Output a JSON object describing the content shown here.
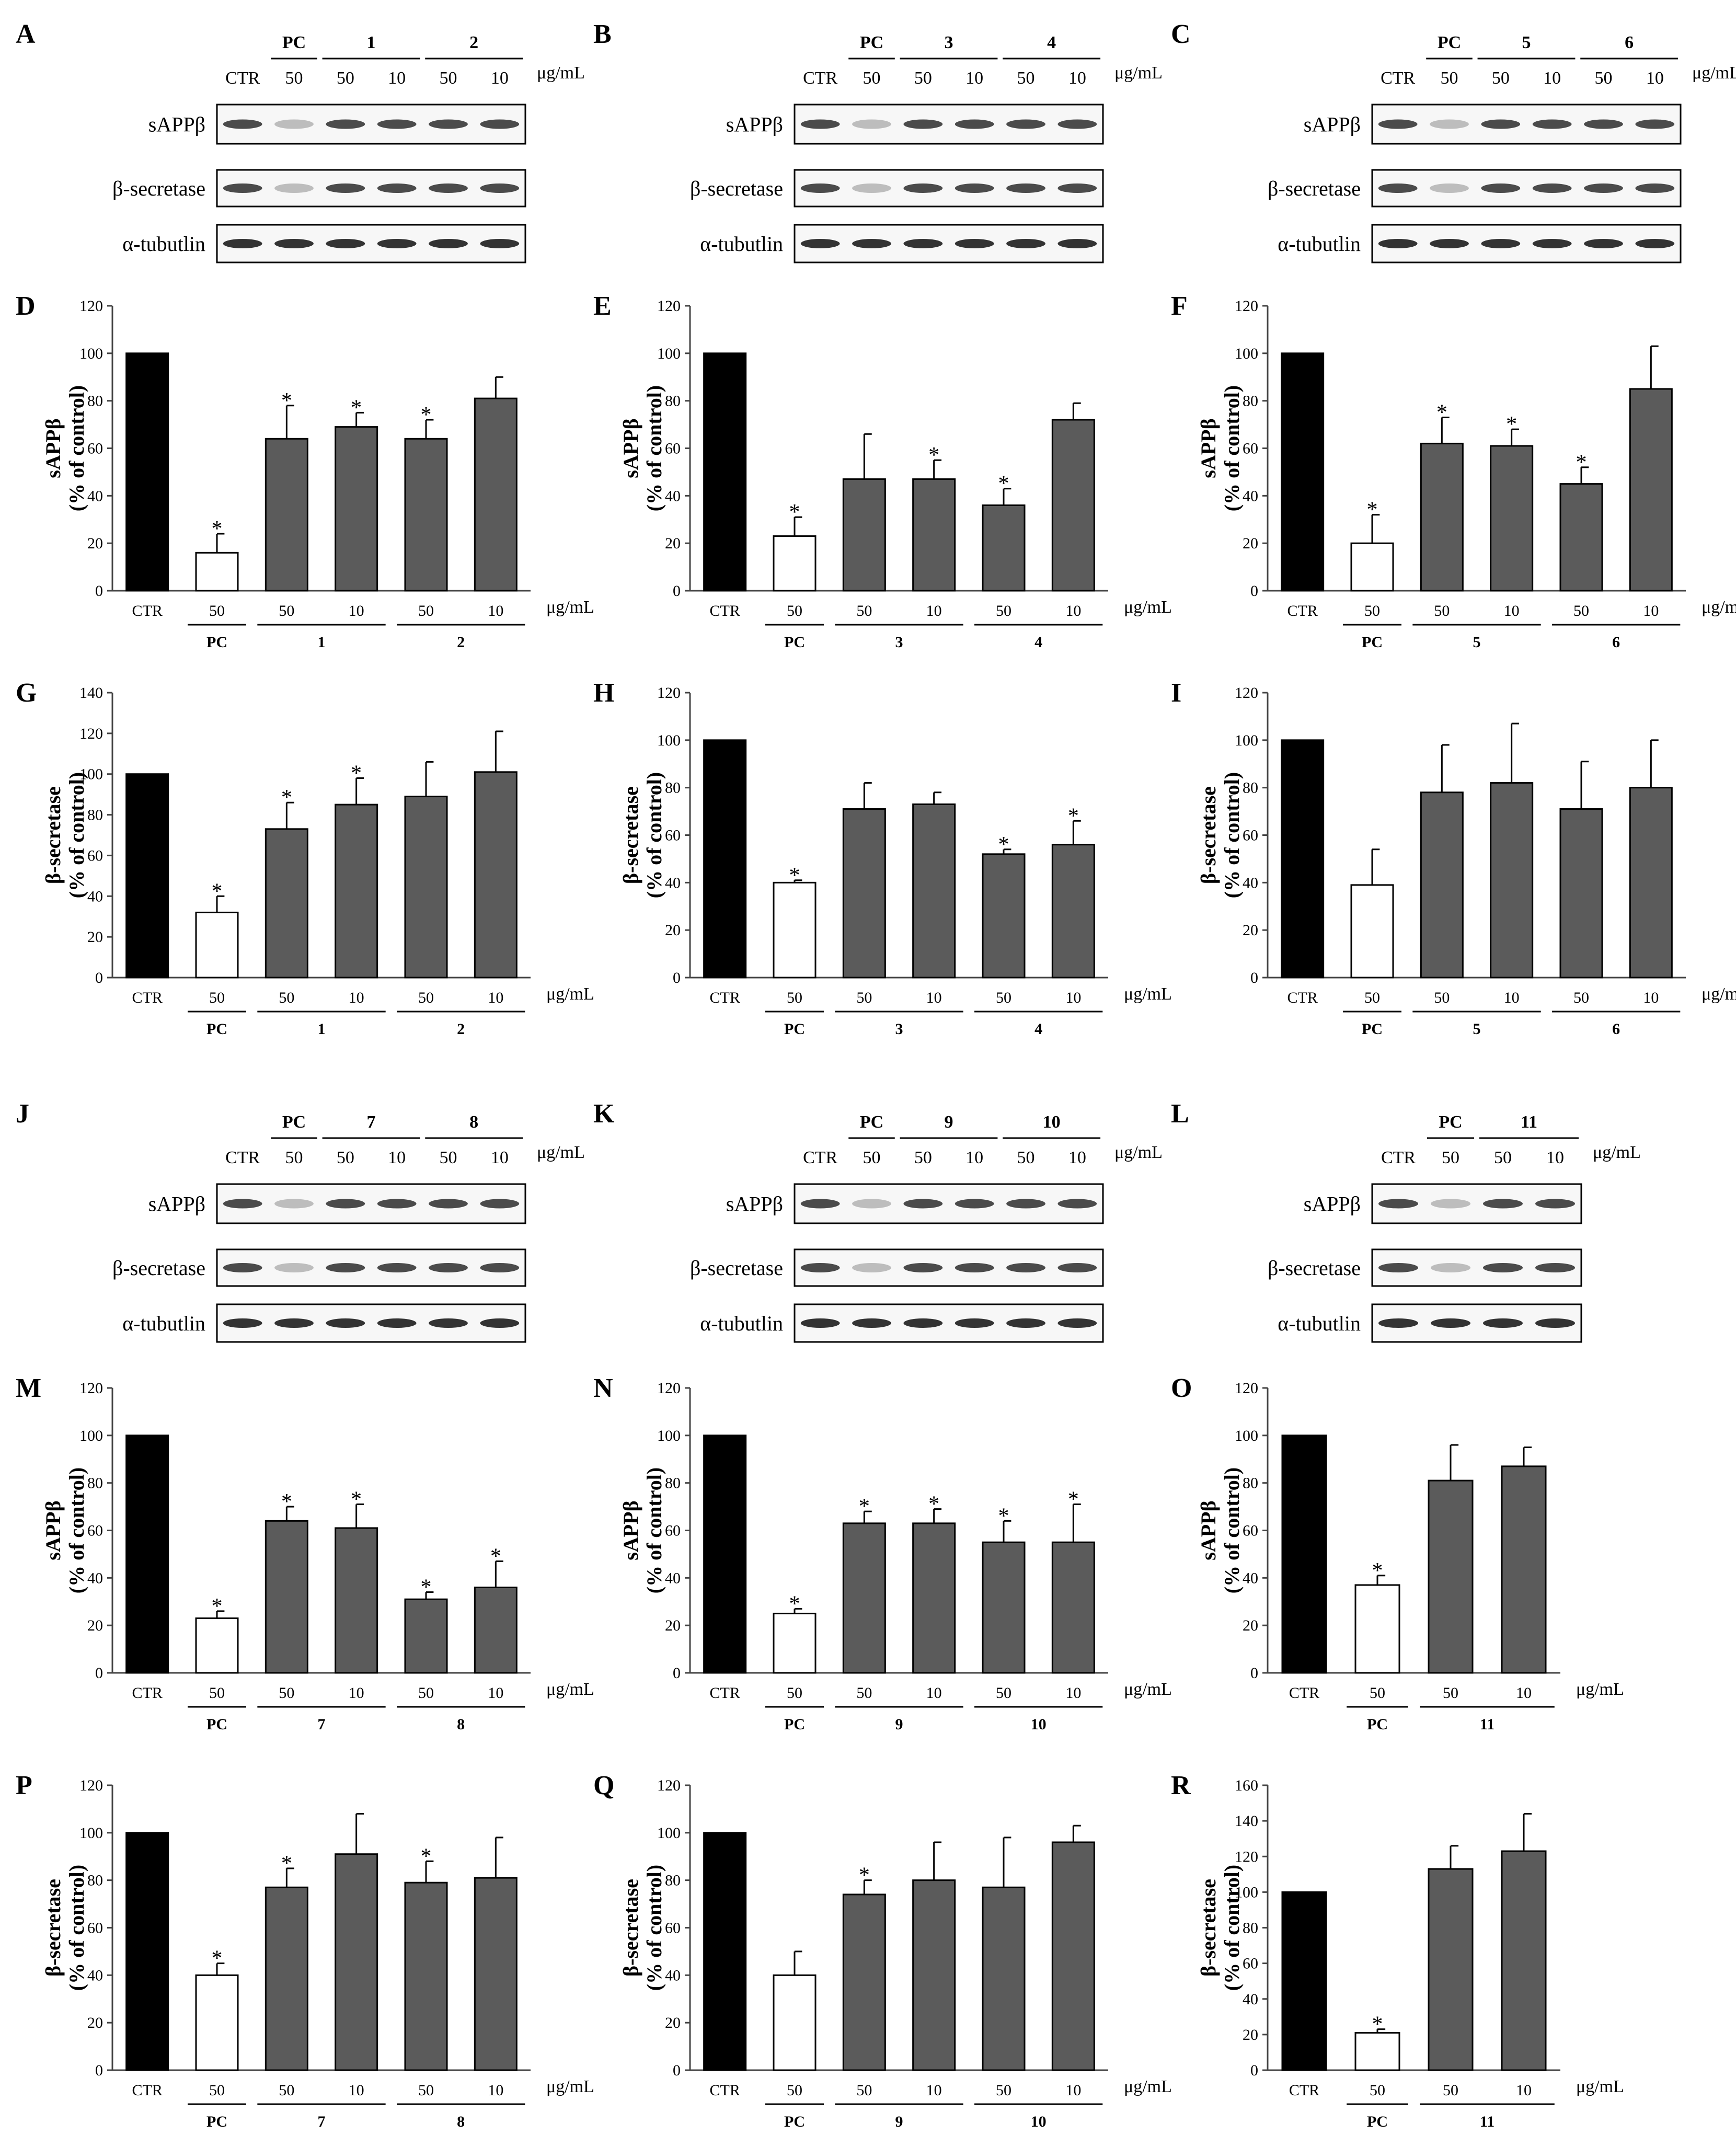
{
  "unit_label": "μg/mL",
  "blots": [
    {
      "letter": "A",
      "header": [
        "CTR",
        "50",
        "50",
        "10",
        "50",
        "10"
      ],
      "groups": [
        "PC",
        "1",
        "2"
      ],
      "rows": [
        "sAPPβ",
        "β-secretase",
        "α-tubutlin"
      ]
    },
    {
      "letter": "B",
      "header": [
        "CTR",
        "50",
        "50",
        "10",
        "50",
        "10"
      ],
      "groups": [
        "PC",
        "3",
        "4"
      ],
      "rows": [
        "sAPPβ",
        "β-secretase",
        "α-tubutlin"
      ]
    },
    {
      "letter": "C",
      "header": [
        "CTR",
        "50",
        "50",
        "10",
        "50",
        "10"
      ],
      "groups": [
        "PC",
        "5",
        "6"
      ],
      "rows": [
        "sAPPβ",
        "β-secretase",
        "α-tubutlin"
      ]
    },
    {
      "letter": "J",
      "header": [
        "CTR",
        "50",
        "50",
        "10",
        "50",
        "10"
      ],
      "groups": [
        "PC",
        "7",
        "8"
      ],
      "rows": [
        "sAPPβ",
        "β-secretase",
        "α-tubutlin"
      ]
    },
    {
      "letter": "K",
      "header": [
        "CTR",
        "50",
        "50",
        "10",
        "50",
        "10"
      ],
      "groups": [
        "PC",
        "9",
        "10"
      ],
      "rows": [
        "sAPPβ",
        "β-secretase",
        "α-tubutlin"
      ]
    },
    {
      "letter": "L",
      "header": [
        "CTR",
        "50",
        "50",
        "10"
      ],
      "groups": [
        "PC",
        "11"
      ],
      "rows": [
        "sAPPβ",
        "β-secretase",
        "α-tubutlin"
      ]
    }
  ],
  "chart_data": [
    {
      "letter": "D",
      "type": "bar",
      "ylabel": "sAPPβ",
      "ylabel2": "(% of control)",
      "ylim": [
        0,
        120
      ],
      "yticks": [
        "0",
        "20",
        "40",
        "60",
        "80",
        "100",
        "120"
      ],
      "categories": [
        "CTR",
        "50",
        "50",
        "10",
        "50",
        "10"
      ],
      "groups": [
        "PC",
        "1",
        "2"
      ],
      "values": [
        100,
        16,
        64,
        69,
        64,
        81
      ],
      "errors": [
        0,
        8,
        14,
        6,
        8,
        9
      ],
      "significant": [
        false,
        true,
        true,
        true,
        true,
        false
      ]
    },
    {
      "letter": "E",
      "type": "bar",
      "ylabel": "sAPPβ",
      "ylabel2": "(% of control)",
      "ylim": [
        0,
        120
      ],
      "yticks": [
        "0",
        "20",
        "40",
        "60",
        "80",
        "100",
        "120"
      ],
      "categories": [
        "CTR",
        "50",
        "50",
        "10",
        "50",
        "10"
      ],
      "groups": [
        "PC",
        "3",
        "4"
      ],
      "values": [
        100,
        23,
        47,
        47,
        36,
        72
      ],
      "errors": [
        0,
        8,
        19,
        8,
        7,
        7
      ],
      "significant": [
        false,
        true,
        false,
        true,
        true,
        false
      ]
    },
    {
      "letter": "F",
      "type": "bar",
      "ylabel": "sAPPβ",
      "ylabel2": "(% of control)",
      "ylim": [
        0,
        120
      ],
      "yticks": [
        "0",
        "20",
        "40",
        "60",
        "80",
        "100",
        "120"
      ],
      "categories": [
        "CTR",
        "50",
        "50",
        "10",
        "50",
        "10"
      ],
      "groups": [
        "PC",
        "5",
        "6"
      ],
      "values": [
        100,
        20,
        62,
        61,
        45,
        85
      ],
      "errors": [
        0,
        12,
        11,
        7,
        7,
        18
      ],
      "significant": [
        false,
        true,
        true,
        true,
        true,
        false
      ]
    },
    {
      "letter": "G",
      "type": "bar",
      "ylabel": "β-secretase",
      "ylabel2": "(% of control)",
      "ylim": [
        0,
        140
      ],
      "yticks": [
        "0",
        "20",
        "40",
        "60",
        "80",
        "100",
        "120",
        "140"
      ],
      "categories": [
        "CTR",
        "50",
        "50",
        "10",
        "50",
        "10"
      ],
      "groups": [
        "PC",
        "1",
        "2"
      ],
      "values": [
        100,
        32,
        73,
        85,
        89,
        101
      ],
      "errors": [
        0,
        8,
        13,
        13,
        17,
        20
      ],
      "significant": [
        false,
        true,
        true,
        true,
        false,
        false
      ]
    },
    {
      "letter": "H",
      "type": "bar",
      "ylabel": "β-secretase",
      "ylabel2": "(% of control)",
      "ylim": [
        0,
        120
      ],
      "yticks": [
        "0",
        "20",
        "40",
        "60",
        "80",
        "100",
        "120"
      ],
      "categories": [
        "CTR",
        "50",
        "50",
        "10",
        "50",
        "10"
      ],
      "groups": [
        "PC",
        "3",
        "4"
      ],
      "values": [
        100,
        40,
        71,
        73,
        52,
        56
      ],
      "errors": [
        0,
        1,
        11,
        5,
        2,
        10
      ],
      "significant": [
        false,
        true,
        false,
        false,
        true,
        true
      ]
    },
    {
      "letter": "I",
      "type": "bar",
      "ylabel": "β-secretase",
      "ylabel2": "(% of control)",
      "ylim": [
        0,
        120
      ],
      "yticks": [
        "0",
        "20",
        "40",
        "60",
        "80",
        "100",
        "120"
      ],
      "categories": [
        "CTR",
        "50",
        "50",
        "10",
        "50",
        "10"
      ],
      "groups": [
        "PC",
        "5",
        "6"
      ],
      "values": [
        100,
        39,
        78,
        82,
        71,
        80
      ],
      "errors": [
        0,
        15,
        20,
        25,
        20,
        20
      ],
      "significant": [
        false,
        false,
        false,
        false,
        false,
        false
      ]
    },
    {
      "letter": "M",
      "type": "bar",
      "ylabel": "sAPPβ",
      "ylabel2": "(% of control)",
      "ylim": [
        0,
        120
      ],
      "yticks": [
        "0",
        "20",
        "40",
        "60",
        "80",
        "100",
        "120"
      ],
      "categories": [
        "CTR",
        "50",
        "50",
        "10",
        "50",
        "10"
      ],
      "groups": [
        "PC",
        "7",
        "8"
      ],
      "values": [
        100,
        23,
        64,
        61,
        31,
        36
      ],
      "errors": [
        0,
        3,
        6,
        10,
        3,
        11
      ],
      "significant": [
        false,
        true,
        true,
        true,
        true,
        true
      ]
    },
    {
      "letter": "N",
      "type": "bar",
      "ylabel": "sAPPβ",
      "ylabel2": "(% of control)",
      "ylim": [
        0,
        120
      ],
      "yticks": [
        "0",
        "20",
        "40",
        "60",
        "80",
        "100",
        "120"
      ],
      "categories": [
        "CTR",
        "50",
        "50",
        "10",
        "50",
        "10"
      ],
      "groups": [
        "PC",
        "9",
        "10"
      ],
      "values": [
        100,
        25,
        63,
        63,
        55,
        55
      ],
      "errors": [
        0,
        2,
        5,
        6,
        9,
        16
      ],
      "significant": [
        false,
        true,
        true,
        true,
        true,
        true
      ]
    },
    {
      "letter": "O",
      "type": "bar",
      "ylabel": "sAPPβ",
      "ylabel2": "(% of control)",
      "ylim": [
        0,
        120
      ],
      "yticks": [
        "0",
        "20",
        "40",
        "60",
        "80",
        "100",
        "120"
      ],
      "categories": [
        "CTR",
        "50",
        "50",
        "10"
      ],
      "groups": [
        "PC",
        "11"
      ],
      "values": [
        100,
        37,
        81,
        87
      ],
      "errors": [
        0,
        4,
        15,
        8
      ],
      "significant": [
        false,
        true,
        false,
        false
      ]
    },
    {
      "letter": "P",
      "type": "bar",
      "ylabel": "β-secretase",
      "ylabel2": "(% of control)",
      "ylim": [
        0,
        120
      ],
      "yticks": [
        "0",
        "20",
        "40",
        "60",
        "80",
        "100",
        "120"
      ],
      "categories": [
        "CTR",
        "50",
        "50",
        "10",
        "50",
        "10"
      ],
      "groups": [
        "PC",
        "7",
        "8"
      ],
      "values": [
        100,
        40,
        77,
        91,
        79,
        81
      ],
      "errors": [
        0,
        5,
        8,
        17,
        9,
        17
      ],
      "significant": [
        false,
        true,
        true,
        false,
        true,
        false
      ]
    },
    {
      "letter": "Q",
      "type": "bar",
      "ylabel": "β-secretase",
      "ylabel2": "(% of control)",
      "ylim": [
        0,
        120
      ],
      "yticks": [
        "0",
        "20",
        "40",
        "60",
        "80",
        "100",
        "120"
      ],
      "categories": [
        "CTR",
        "50",
        "50",
        "10",
        "50",
        "10"
      ],
      "groups": [
        "PC",
        "9",
        "10"
      ],
      "values": [
        100,
        40,
        74,
        80,
        77,
        96
      ],
      "errors": [
        0,
        10,
        6,
        16,
        21,
        7
      ],
      "significant": [
        false,
        false,
        true,
        false,
        false,
        false
      ]
    },
    {
      "letter": "R",
      "type": "bar",
      "ylabel": "β-secretase",
      "ylabel2": "(% of control)",
      "ylim": [
        0,
        160
      ],
      "yticks": [
        "0",
        "20",
        "40",
        "60",
        "80",
        "100",
        "120",
        "140",
        "160"
      ],
      "categories": [
        "CTR",
        "50",
        "50",
        "10"
      ],
      "groups": [
        "PC",
        "11"
      ],
      "values": [
        100,
        21,
        113,
        123
      ],
      "errors": [
        0,
        2,
        13,
        21
      ],
      "significant": [
        false,
        true,
        false,
        false
      ]
    }
  ]
}
